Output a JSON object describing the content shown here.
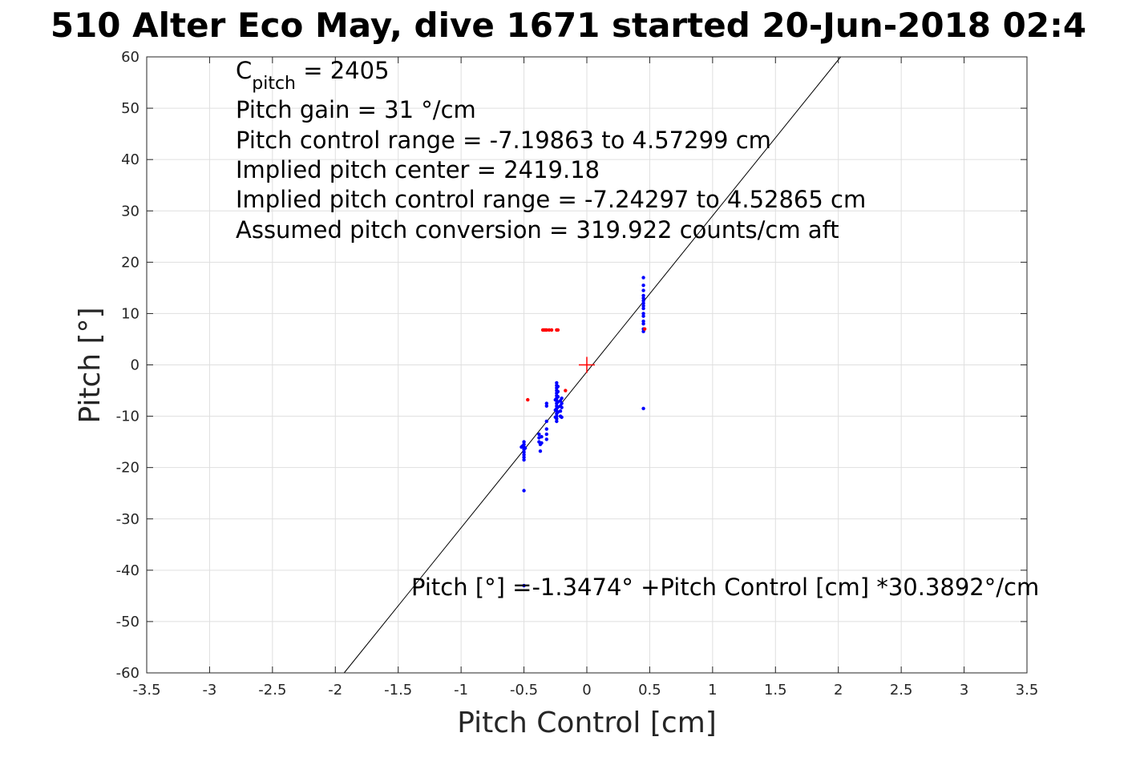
{
  "chart_data": {
    "type": "scatter",
    "title": "510 Alter Eco May, dive 1671 started 20-Jun-2018 02:4",
    "xlabel": "Pitch Control [cm]",
    "ylabel": "Pitch [°]",
    "xlim": [
      -3.5,
      3.5
    ],
    "ylim": [
      -60,
      60
    ],
    "xticks": [
      -3.5,
      -3,
      -2.5,
      -2,
      -1.5,
      -1,
      -0.5,
      0,
      0.5,
      1,
      1.5,
      2,
      2.5,
      3,
      3.5
    ],
    "yticks": [
      -60,
      -50,
      -40,
      -30,
      -20,
      -10,
      0,
      10,
      20,
      30,
      40,
      50,
      60
    ],
    "xtick_labels": [
      "-3.5",
      "-3",
      "-2.5",
      "-2",
      "-1.5",
      "-1",
      "-0.5",
      "0",
      "0.5",
      "1",
      "1.5",
      "2",
      "2.5",
      "3",
      "3.5"
    ],
    "ytick_labels": [
      "-60",
      "-50",
      "-40",
      "-30",
      "-20",
      "-10",
      "0",
      "10",
      "20",
      "30",
      "40",
      "50",
      "60"
    ],
    "grid": true,
    "fit_line": {
      "intercept": -1.3474,
      "slope": 30.3892
    },
    "center_marker": {
      "x": 0,
      "y": 0,
      "color": "#ff0000"
    },
    "annotations": {
      "c_pitch_main": "C",
      "c_pitch_sub": "pitch",
      "c_pitch_value": " = 2405",
      "lines": [
        "Pitch gain = 31 °/cm",
        "Pitch control range = -7.19863 to 4.57299 cm",
        "Implied pitch center = 2419.18",
        "Implied pitch control range = -7.24297 to 4.52865 cm",
        "Assumed pitch conversion = 319.922 counts/cm aft"
      ],
      "fit_equation": "Pitch [°] =-1.3474° +Pitch Control [cm] *30.3892°/cm"
    },
    "series": [
      {
        "color": "#0000ff",
        "points": [
          [
            -0.5,
            -15.0
          ],
          [
            -0.5,
            -15.5
          ],
          [
            -0.5,
            -16.0
          ],
          [
            -0.5,
            -16.5
          ],
          [
            -0.5,
            -17.0
          ],
          [
            -0.5,
            -17.5
          ],
          [
            -0.5,
            -18.0
          ],
          [
            -0.5,
            -18.5
          ],
          [
            -0.51,
            -15.8
          ],
          [
            -0.49,
            -16.2
          ],
          [
            -0.52,
            -16.0
          ],
          [
            -0.5,
            -24.5
          ],
          [
            -0.5,
            -43.0
          ],
          [
            -0.38,
            -13.5
          ],
          [
            -0.38,
            -14.2
          ],
          [
            -0.38,
            -15.0
          ],
          [
            -0.37,
            -15.5
          ],
          [
            -0.37,
            -16.8
          ],
          [
            -0.36,
            -14.0
          ],
          [
            -0.36,
            -15.2
          ],
          [
            -0.32,
            -8.0
          ],
          [
            -0.32,
            -7.5
          ],
          [
            -0.32,
            -11.0
          ],
          [
            -0.32,
            -12.5
          ],
          [
            -0.32,
            -13.5
          ],
          [
            -0.32,
            -14.5
          ],
          [
            -0.24,
            -3.5
          ],
          [
            -0.24,
            -4.0
          ],
          [
            -0.24,
            -4.5
          ],
          [
            -0.24,
            -5.0
          ],
          [
            -0.24,
            -5.5
          ],
          [
            -0.24,
            -6.0
          ],
          [
            -0.24,
            -6.5
          ],
          [
            -0.24,
            -7.0
          ],
          [
            -0.24,
            -7.5
          ],
          [
            -0.24,
            -8.0
          ],
          [
            -0.24,
            -8.5
          ],
          [
            -0.24,
            -9.0
          ],
          [
            -0.24,
            -9.5
          ],
          [
            -0.24,
            -10.0
          ],
          [
            -0.24,
            -10.5
          ],
          [
            -0.24,
            -11.0
          ],
          [
            -0.23,
            -4.2
          ],
          [
            -0.23,
            -5.2
          ],
          [
            -0.23,
            -6.2
          ],
          [
            -0.23,
            -7.2
          ],
          [
            -0.23,
            -8.2
          ],
          [
            -0.23,
            -9.2
          ],
          [
            -0.25,
            -6.8
          ],
          [
            -0.25,
            -8.8
          ],
          [
            -0.25,
            -10.2
          ],
          [
            -0.21,
            -7.0
          ],
          [
            -0.21,
            -8.0
          ],
          [
            -0.21,
            -9.0
          ],
          [
            -0.21,
            -10.0
          ],
          [
            -0.2,
            -6.5
          ],
          [
            -0.2,
            -7.5
          ],
          [
            -0.2,
            -8.3
          ],
          [
            -0.2,
            -10.2
          ],
          [
            0.45,
            17.0
          ],
          [
            0.45,
            15.5
          ],
          [
            0.45,
            14.5
          ],
          [
            0.45,
            13.5
          ],
          [
            0.45,
            13.0
          ],
          [
            0.45,
            12.5
          ],
          [
            0.45,
            12.0
          ],
          [
            0.45,
            11.5
          ],
          [
            0.45,
            11.0
          ],
          [
            0.45,
            10.0
          ],
          [
            0.45,
            9.5
          ],
          [
            0.45,
            8.5
          ],
          [
            0.45,
            8.0
          ],
          [
            0.45,
            7.0
          ],
          [
            0.45,
            6.5
          ],
          [
            0.45,
            -8.5
          ]
        ]
      },
      {
        "color": "#ff0000",
        "points": [
          [
            -0.35,
            6.8
          ],
          [
            -0.34,
            6.8
          ],
          [
            -0.33,
            6.8
          ],
          [
            -0.32,
            6.8
          ],
          [
            -0.3,
            6.8
          ],
          [
            -0.28,
            6.8
          ],
          [
            -0.24,
            6.8
          ],
          [
            -0.23,
            6.8
          ],
          [
            -0.47,
            -6.8
          ],
          [
            -0.17,
            -5.0
          ],
          [
            0.46,
            7.0
          ]
        ]
      }
    ]
  }
}
